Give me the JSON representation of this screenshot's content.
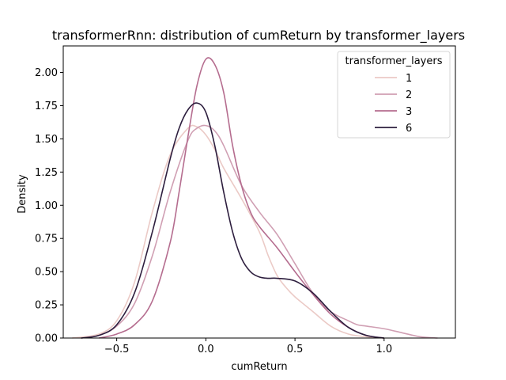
{
  "chart_data": {
    "type": "line",
    "title": "transformerRnn: distribution of cumReturn by transformer_layers",
    "xlabel": "cumReturn",
    "ylabel": "Density",
    "xlim": [
      -0.8,
      1.4
    ],
    "ylim": [
      0,
      2.2
    ],
    "xticks": [
      -0.5,
      0.0,
      0.5,
      1.0
    ],
    "xtick_labels": [
      "−0.5",
      "0.0",
      "0.5",
      "1.0"
    ],
    "yticks": [
      0.0,
      0.25,
      0.5,
      0.75,
      1.0,
      1.25,
      1.5,
      1.75,
      2.0
    ],
    "ytick_labels": [
      "0.00",
      "0.25",
      "0.50",
      "0.75",
      "1.00",
      "1.25",
      "1.50",
      "1.75",
      "2.00"
    ],
    "grid": false,
    "legend": {
      "title": "transformer_layers",
      "placement": "top-right"
    },
    "series": [
      {
        "name": "1",
        "color": "#ebcac6",
        "x": [
          -0.75,
          -0.6,
          -0.5,
          -0.4,
          -0.3,
          -0.2,
          -0.1,
          -0.05,
          0.0,
          0.05,
          0.1,
          0.2,
          0.3,
          0.35,
          0.4,
          0.45,
          0.5,
          0.6,
          0.7,
          0.8,
          0.9,
          1.0
        ],
        "y": [
          0.0,
          0.03,
          0.13,
          0.42,
          0.95,
          1.38,
          1.58,
          1.59,
          1.53,
          1.42,
          1.28,
          1.05,
          0.8,
          0.62,
          0.47,
          0.38,
          0.31,
          0.2,
          0.09,
          0.03,
          0.01,
          0.0
        ]
      },
      {
        "name": "2",
        "color": "#d09fb3",
        "x": [
          -0.7,
          -0.6,
          -0.5,
          -0.4,
          -0.3,
          -0.2,
          -0.1,
          -0.05,
          0.0,
          0.05,
          0.1,
          0.2,
          0.3,
          0.4,
          0.5,
          0.6,
          0.7,
          0.8,
          0.85,
          0.9,
          1.0,
          1.1,
          1.2,
          1.3
        ],
        "y": [
          0.0,
          0.02,
          0.09,
          0.26,
          0.62,
          1.1,
          1.49,
          1.58,
          1.6,
          1.56,
          1.45,
          1.15,
          0.95,
          0.78,
          0.56,
          0.34,
          0.2,
          0.13,
          0.1,
          0.09,
          0.07,
          0.04,
          0.01,
          0.0
        ]
      },
      {
        "name": "3",
        "color": "#b56d8f",
        "x": [
          -0.6,
          -0.5,
          -0.4,
          -0.3,
          -0.2,
          -0.15,
          -0.1,
          -0.05,
          0.0,
          0.05,
          0.1,
          0.15,
          0.2,
          0.25,
          0.3,
          0.4,
          0.5,
          0.6,
          0.7,
          0.8,
          0.9,
          1.0
        ],
        "y": [
          0.0,
          0.03,
          0.1,
          0.28,
          0.72,
          1.1,
          1.52,
          1.9,
          2.1,
          2.06,
          1.85,
          1.45,
          1.15,
          0.95,
          0.84,
          0.68,
          0.5,
          0.33,
          0.18,
          0.08,
          0.02,
          0.0
        ]
      },
      {
        "name": "6",
        "color": "#2d1e3e",
        "x": [
          -0.7,
          -0.6,
          -0.5,
          -0.4,
          -0.3,
          -0.2,
          -0.15,
          -0.1,
          -0.05,
          0.0,
          0.05,
          0.1,
          0.15,
          0.2,
          0.25,
          0.3,
          0.35,
          0.4,
          0.5,
          0.6,
          0.7,
          0.8,
          0.9,
          1.0
        ],
        "y": [
          0.0,
          0.02,
          0.1,
          0.34,
          0.8,
          1.35,
          1.58,
          1.72,
          1.77,
          1.7,
          1.45,
          1.1,
          0.8,
          0.6,
          0.5,
          0.46,
          0.45,
          0.45,
          0.43,
          0.34,
          0.2,
          0.08,
          0.02,
          0.0
        ]
      }
    ]
  }
}
